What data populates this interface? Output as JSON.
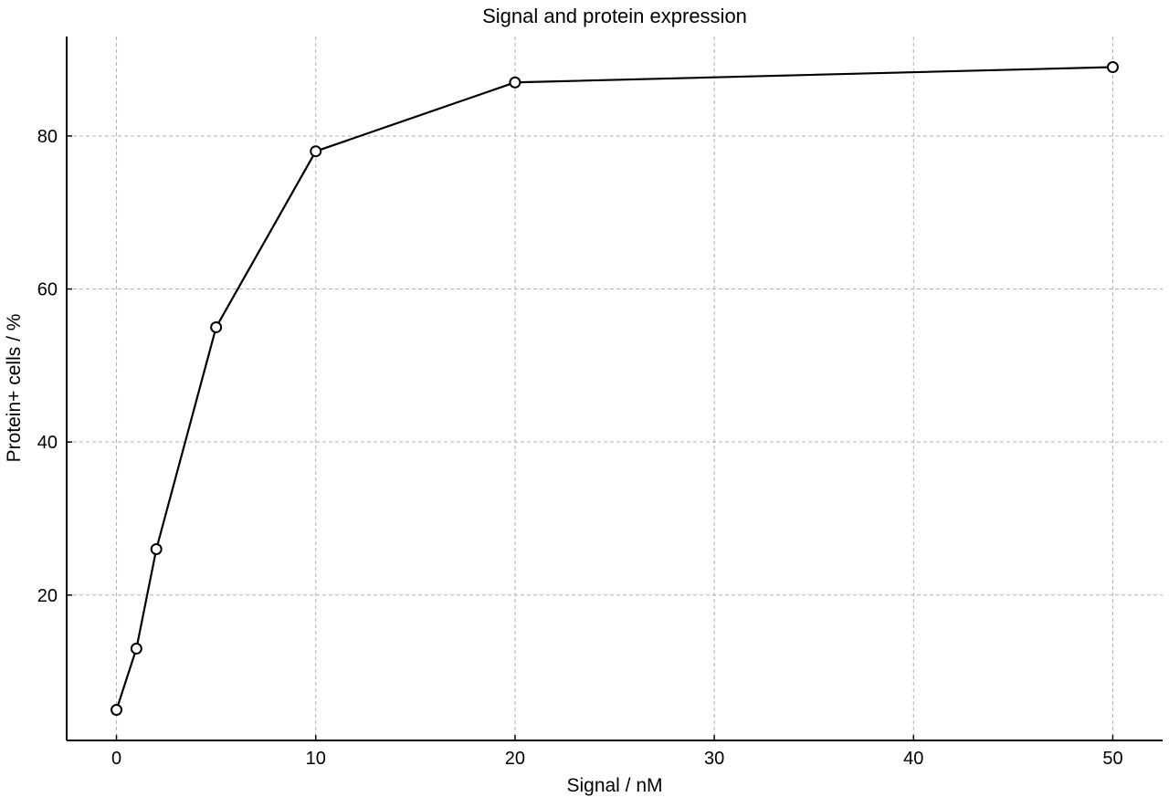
{
  "chart_data": {
    "type": "line",
    "title": "Signal and protein expression",
    "xlabel": "Signal / nM",
    "ylabel": "Protein+ cells / %",
    "xlim": [
      -2.5,
      52.5
    ],
    "ylim": [
      1,
      93
    ],
    "xticks": [
      0,
      10,
      20,
      30,
      40,
      50
    ],
    "yticks": [
      20,
      40,
      60,
      80
    ],
    "grid": true,
    "x": [
      0,
      1,
      2,
      5,
      10,
      20,
      50
    ],
    "series": [
      {
        "values": [
          5,
          13,
          26,
          55,
          78,
          87,
          89
        ],
        "color": "#000000",
        "marker": "open-circle"
      }
    ]
  }
}
